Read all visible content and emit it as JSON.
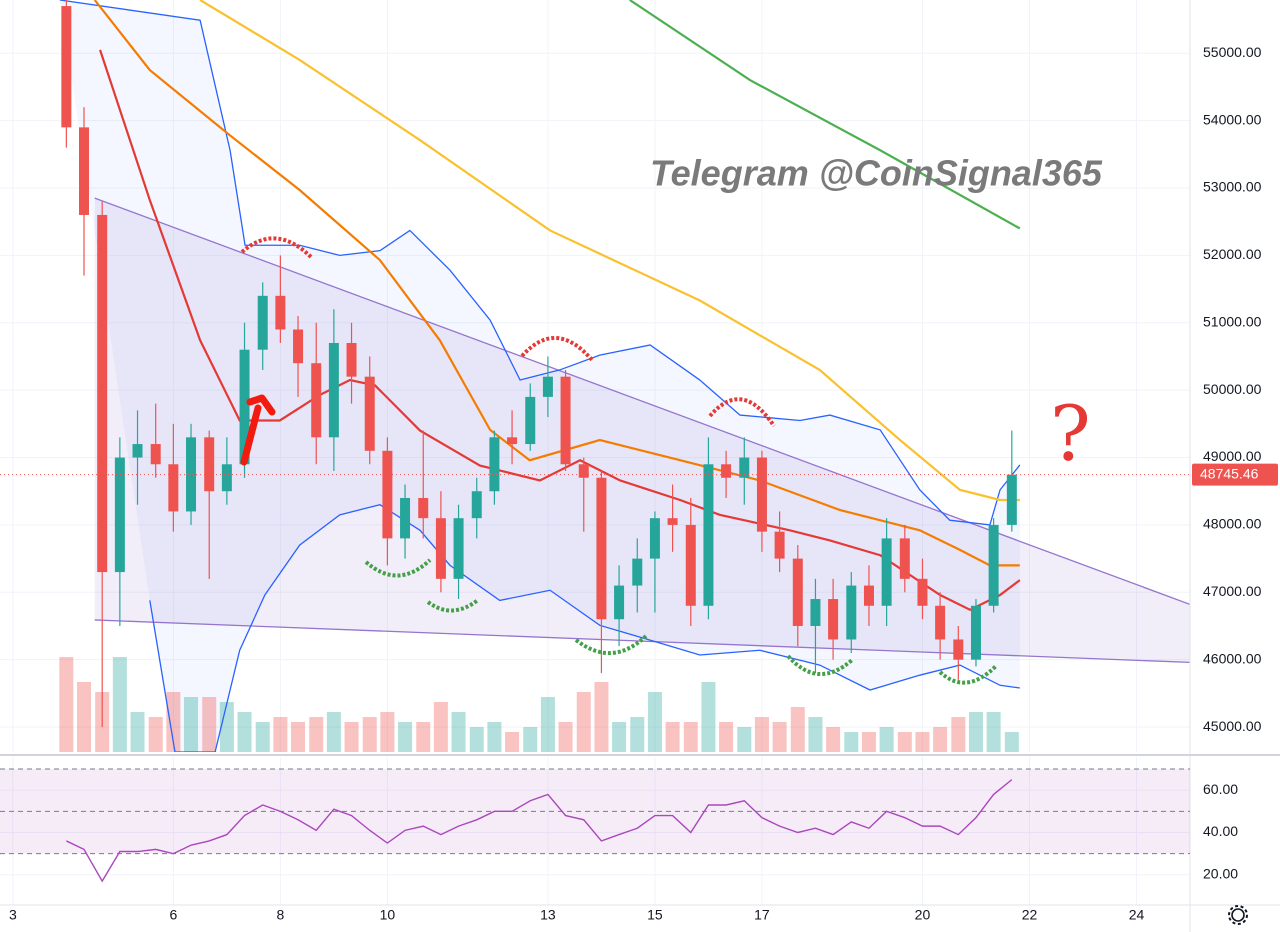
{
  "chart_data": {
    "type": "candlestick",
    "title": "Telegram @CoinSignal365",
    "annotation": "?",
    "xlim": [
      2.76,
      25.0
    ],
    "xticks": [
      3,
      6,
      8,
      10,
      13,
      15,
      17,
      20,
      22,
      24
    ],
    "ylim": [
      44630,
      55790
    ],
    "yticks": [
      {
        "value": 45000,
        "label": "45000.00"
      },
      {
        "value": 46000,
        "label": "46000.00"
      },
      {
        "value": 47000,
        "label": "47000.00"
      },
      {
        "value": 48000,
        "label": "48000.00"
      },
      {
        "value": 49000,
        "label": "49000.00"
      },
      {
        "value": 50000,
        "label": "50000.00"
      },
      {
        "value": 51000,
        "label": "51000.00"
      },
      {
        "value": 52000,
        "label": "52000.00"
      },
      {
        "value": 53000,
        "label": "53000.00"
      },
      {
        "value": 54000,
        "label": "54000.00"
      },
      {
        "value": 55000,
        "label": "55000.00"
      }
    ],
    "grid": true,
    "up_color": "#26a69a",
    "down_color": "#ef5350",
    "x": [
      4,
      4.33,
      4.67,
      5,
      5.33,
      5.67,
      6,
      6.33,
      6.67,
      7,
      7.33,
      7.67,
      8,
      8.33,
      8.67,
      9,
      9.33,
      9.67,
      10,
      10.33,
      10.67,
      11,
      11.33,
      11.67,
      12,
      12.33,
      12.67,
      13,
      13.33,
      13.67,
      14,
      14.33,
      14.67,
      15,
      15.33,
      15.67,
      16,
      16.33,
      16.67,
      17,
      17.33,
      17.67,
      18,
      18.33,
      18.67,
      19,
      19.33,
      19.67,
      20,
      20.33,
      20.67,
      21,
      21.33,
      21.67
    ],
    "open": [
      55700,
      53900,
      52600,
      47300,
      49000,
      49200,
      48900,
      48200,
      49300,
      48500,
      48900,
      50600,
      51400,
      50900,
      50400,
      49300,
      50700,
      50200,
      49100,
      47800,
      48400,
      48100,
      47200,
      48100,
      48500,
      49300,
      49200,
      49900,
      50200,
      48900,
      48700,
      46600,
      47100,
      47500,
      48100,
      48000,
      46800,
      48900,
      48700,
      49000,
      47900,
      47500,
      46500,
      46900,
      46300,
      47100,
      46800,
      47800,
      47200,
      46800,
      46300,
      46000,
      46800,
      48000
    ],
    "high": [
      55790,
      54200,
      52800,
      49300,
      49700,
      49800,
      49500,
      49500,
      49400,
      49300,
      51000,
      51600,
      52000,
      51100,
      51000,
      51200,
      51000,
      50500,
      49300,
      48600,
      49400,
      48500,
      48300,
      48700,
      49400,
      49700,
      50100,
      50500,
      50300,
      49000,
      48800,
      47400,
      47800,
      48200,
      48600,
      48400,
      49300,
      49100,
      49300,
      49100,
      48200,
      47700,
      47200,
      47200,
      47300,
      47400,
      48100,
      48000,
      47500,
      47000,
      46500,
      46900,
      48100,
      49400
    ],
    "low": [
      53600,
      51700,
      45000,
      46500,
      48300,
      48700,
      47900,
      48000,
      47200,
      48300,
      48700,
      50300,
      50700,
      49900,
      48900,
      48800,
      49800,
      48900,
      47400,
      47500,
      47800,
      47000,
      46900,
      47800,
      48300,
      48900,
      49100,
      49600,
      48800,
      47900,
      45800,
      46200,
      46700,
      46700,
      47600,
      46500,
      46600,
      48400,
      48300,
      47600,
      47300,
      46200,
      45800,
      46000,
      46100,
      46500,
      46500,
      47000,
      46600,
      46000,
      45700,
      45900,
      46700,
      47900
    ],
    "close": [
      53900,
      52600,
      47300,
      49000,
      49200,
      48900,
      48200,
      49300,
      48500,
      48900,
      50600,
      51400,
      50900,
      50400,
      49300,
      50700,
      50200,
      49100,
      47800,
      48400,
      48100,
      47200,
      48100,
      48500,
      49300,
      49200,
      49900,
      50200,
      48900,
      48700,
      46600,
      47100,
      47500,
      48100,
      48000,
      46800,
      48900,
      48700,
      49000,
      47900,
      47500,
      46500,
      46900,
      46300,
      47100,
      46800,
      47800,
      47200,
      46800,
      46300,
      46000,
      46800,
      48000,
      48745.46
    ],
    "volume": {
      "ylim": [
        0,
        100
      ],
      "values": [
        95,
        70,
        60,
        95,
        40,
        35,
        60,
        55,
        55,
        50,
        40,
        30,
        35,
        30,
        35,
        40,
        30,
        35,
        40,
        30,
        30,
        50,
        40,
        25,
        30,
        20,
        25,
        55,
        30,
        60,
        70,
        30,
        35,
        60,
        30,
        30,
        70,
        30,
        25,
        35,
        30,
        45,
        35,
        25,
        20,
        20,
        25,
        20,
        20,
        25,
        35,
        40,
        40,
        20
      ]
    },
    "overlays": [
      {
        "kind": "band",
        "color": "#2962ff",
        "x": [
          3.88,
          6.5,
          7.06,
          7.34,
          8.36,
          9.11,
          9.86,
          10.42,
          11.17,
          11.92,
          12.48,
          13.22,
          13.97,
          14.91,
          15.84,
          16.59,
          17.71,
          18.27,
          19.21,
          19.95,
          20.51,
          21.26,
          21.45,
          21.82
        ],
        "values": [
          55790,
          55490,
          53560,
          52150,
          52150,
          52000,
          52070,
          52370,
          51780,
          51040,
          50150,
          50300,
          50520,
          50670,
          50150,
          49630,
          49550,
          49630,
          49410,
          48520,
          48070,
          48000,
          48520,
          48890
        ]
      },
      {
        "kind": "band",
        "color": "#2962ff",
        "x": [
          5.56,
          6.03,
          6.78,
          7.24,
          7.71,
          8.36,
          9.11,
          9.86,
          10.61,
          11.17,
          12.1,
          13.04,
          13.97,
          14.91,
          15.84,
          16.96,
          18.08,
          19.02,
          19.95,
          20.7,
          21.45,
          21.82
        ],
        "values": [
          46880,
          44630,
          44630,
          46140,
          46960,
          47700,
          48150,
          48300,
          47920,
          47400,
          46880,
          47030,
          46510,
          46290,
          46070,
          46140,
          45920,
          45550,
          45770,
          45920,
          45620,
          45580
        ]
      },
      {
        "kind": "ma",
        "color": "#4caf50",
        "x": [
          14.53,
          16.78,
          19.21,
          21.82
        ],
        "values": [
          55790,
          54600,
          53560,
          52400
        ]
      },
      {
        "kind": "ma",
        "color": "#fbc02d",
        "x": [
          6.5,
          8.36,
          10.61,
          13.04,
          15.84,
          18.08,
          19.58,
          20.7,
          21.45,
          21.82
        ],
        "values": [
          55790,
          54900,
          53710,
          52370,
          51330,
          50300,
          49260,
          48520,
          48370,
          48370
        ]
      },
      {
        "kind": "ma",
        "color": "#f57c00",
        "x": [
          4.53,
          5.56,
          7.06,
          8.36,
          9.86,
          10.98,
          11.92,
          12.66,
          13.97,
          15.47,
          16.96,
          18.46,
          19.95,
          20.7,
          21.26,
          21.82
        ],
        "values": [
          55790,
          54750,
          53780,
          52970,
          51930,
          50740,
          49410,
          48960,
          49260,
          48960,
          48660,
          48220,
          47920,
          47630,
          47400,
          47400
        ]
      },
      {
        "kind": "ma",
        "color": "#e53935",
        "x": [
          4.63,
          5.56,
          6.5,
          7.24,
          7.99,
          8.74,
          9.3,
          9.77,
          10.61,
          11.73,
          12.85,
          13.6,
          14.35,
          15.47,
          16.21,
          17.52,
          18.27,
          19.21,
          20.33,
          20.89,
          21.45,
          21.82
        ],
        "values": [
          55050,
          52820,
          50740,
          49550,
          49550,
          49930,
          50150,
          50070,
          49400,
          48880,
          48660,
          48960,
          48660,
          48370,
          48150,
          47920,
          47770,
          47550,
          46960,
          46740,
          46960,
          47180
        ]
      }
    ],
    "trendlines": [
      {
        "color": "#9575cd",
        "x": [
          4.53,
          25.0
        ],
        "values": [
          52850,
          46820
        ]
      },
      {
        "color": "#9575cd",
        "x": [
          4.53,
          25.0
        ],
        "values": [
          46590,
          45960
        ]
      }
    ],
    "rsi": {
      "color": "#ab47bc",
      "ylim": [
        5.7,
        75.7
      ],
      "levels": [
        30,
        50,
        70
      ],
      "yticks": [
        {
          "value": 20,
          "label": "20.00"
        },
        {
          "value": 40,
          "label": "40.00"
        },
        {
          "value": 60,
          "label": "60.00"
        }
      ],
      "values": [
        36,
        32,
        17,
        31,
        31,
        32,
        30,
        34,
        36,
        39,
        48,
        53,
        50,
        46,
        41,
        51,
        48,
        41,
        35,
        41,
        43,
        39,
        43,
        46,
        50,
        50,
        55,
        58,
        48,
        46,
        36,
        39,
        42,
        48,
        48,
        40,
        53,
        53,
        55,
        47,
        43,
        40,
        42,
        39,
        45,
        42,
        50,
        47,
        43,
        43,
        39,
        47,
        58,
        65
      ]
    }
  }
}
